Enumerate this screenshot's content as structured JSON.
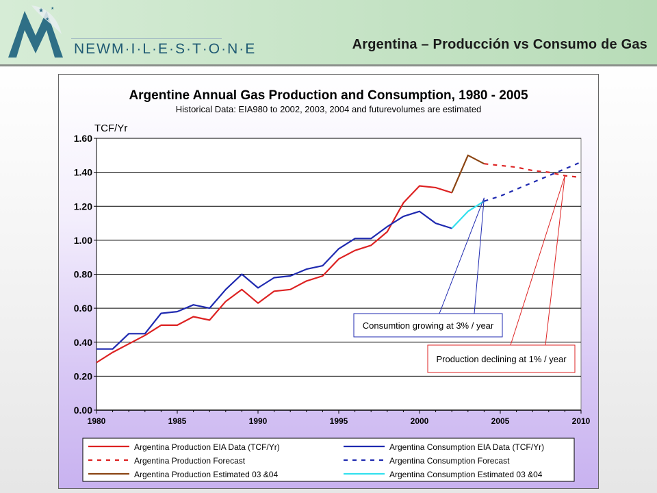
{
  "slide": {
    "title": "Argentina – Producción vs Consumo de Gas",
    "brand": "NEWM·I·L·E·S·T·O·N·E",
    "logo_icon": "milestone-logo-icon"
  },
  "chart_data": {
    "type": "line",
    "title": "Argentine Annual Gas Production and Consumption, 1980 - 2005",
    "subtitle": "Historical Data: EIA980 to 2002,    2003, 2004 and futurevolumes are  estimated",
    "ylabel": "TCF/Yr",
    "xlim": [
      1980,
      2010
    ],
    "ylim": [
      0,
      1.6
    ],
    "x_ticks": [
      "1980",
      "1985",
      "1990",
      "1995",
      "2000",
      "2005",
      "2010"
    ],
    "y_ticks": [
      "0.00",
      "0.20",
      "0.40",
      "0.60",
      "0.80",
      "1.00",
      "1.20",
      "1.40",
      "1.60"
    ],
    "grid": true,
    "legend_position": "bottom",
    "series": [
      {
        "name": "Argentina Production  EIA Data (TCF/Yr)",
        "style": "solid",
        "color": "#dd2222",
        "x": [
          1980,
          1981,
          1982,
          1983,
          1984,
          1985,
          1986,
          1987,
          1988,
          1989,
          1990,
          1991,
          1992,
          1993,
          1994,
          1995,
          1996,
          1997,
          1998,
          1999,
          2000,
          2001,
          2002
        ],
        "y": [
          0.28,
          0.34,
          0.39,
          0.44,
          0.5,
          0.5,
          0.55,
          0.53,
          0.64,
          0.71,
          0.63,
          0.7,
          0.71,
          0.76,
          0.79,
          0.89,
          0.94,
          0.97,
          1.05,
          1.22,
          1.32,
          1.31,
          1.28
        ]
      },
      {
        "name": "Argentina Consumption  EIA Data (TCF/Yr)",
        "style": "solid",
        "color": "#1f2ab0",
        "x": [
          1980,
          1981,
          1982,
          1983,
          1984,
          1985,
          1986,
          1987,
          1988,
          1989,
          1990,
          1991,
          1992,
          1993,
          1994,
          1995,
          1996,
          1997,
          1998,
          1999,
          2000,
          2001,
          2002
        ],
        "y": [
          0.36,
          0.36,
          0.45,
          0.45,
          0.57,
          0.58,
          0.62,
          0.6,
          0.71,
          0.8,
          0.72,
          0.78,
          0.79,
          0.83,
          0.85,
          0.95,
          1.01,
          1.01,
          1.08,
          1.14,
          1.17,
          1.1,
          1.07
        ]
      },
      {
        "name": "Argentina Production Forecast",
        "style": "dashed",
        "color": "#dd2222",
        "x": [
          2004,
          2005,
          2006,
          2007,
          2008,
          2009,
          2010
        ],
        "y": [
          1.45,
          1.44,
          1.43,
          1.41,
          1.4,
          1.38,
          1.37
        ]
      },
      {
        "name": "Argentina Consumption Forecast",
        "style": "dashed",
        "color": "#1f2ab0",
        "x": [
          2004,
          2005,
          2006,
          2007,
          2008,
          2009,
          2010
        ],
        "y": [
          1.23,
          1.26,
          1.3,
          1.34,
          1.38,
          1.42,
          1.46
        ]
      },
      {
        "name": "Argentina Production Estimated    03 &04",
        "style": "solid",
        "color": "#8b4513",
        "x": [
          2002,
          2003,
          2004
        ],
        "y": [
          1.28,
          1.5,
          1.45
        ]
      },
      {
        "name": "Argentina Consumption Estimated    03 &04",
        "style": "solid",
        "color": "#33e0ee",
        "x": [
          2002,
          2003,
          2004
        ],
        "y": [
          1.07,
          1.17,
          1.23
        ]
      }
    ],
    "annotations": [
      {
        "text": "Consumtion growing at 3% / year",
        "target": [
          2004,
          1.25
        ]
      },
      {
        "text": "Production declining at 1% / year",
        "target": [
          2009,
          1.38
        ]
      }
    ]
  }
}
